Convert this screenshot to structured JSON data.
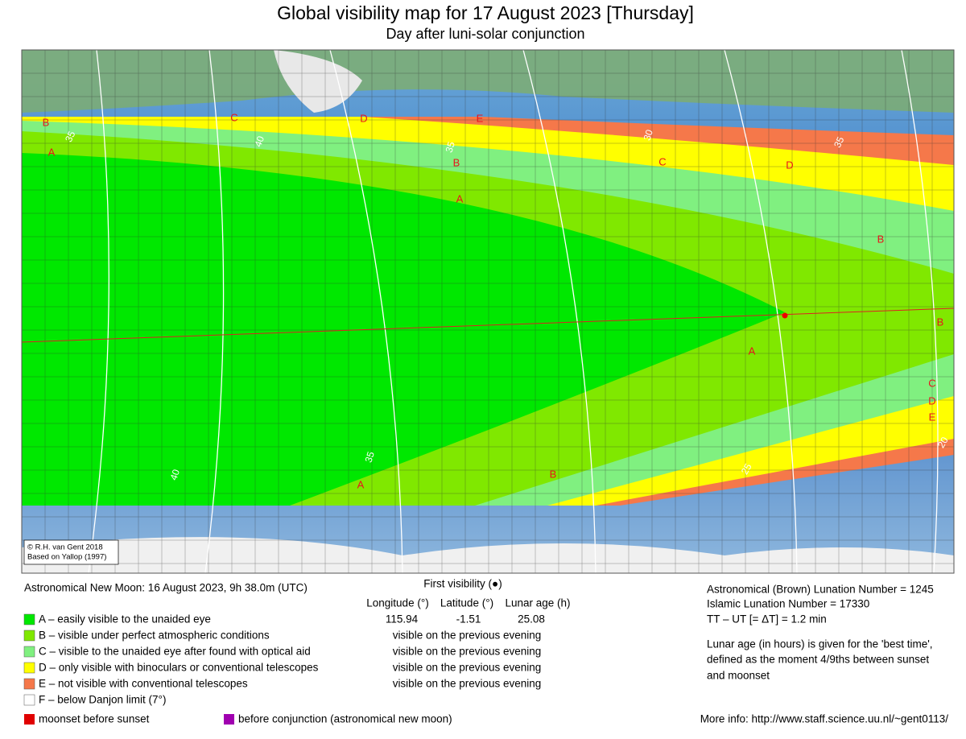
{
  "header": {
    "title": "Global visibility map for 17 August 2023 [Thursday]",
    "subtitle": "Day after luni-solar conjunction"
  },
  "map": {
    "zone_labels": [
      "B",
      "A",
      "C",
      "D",
      "E",
      "B",
      "A",
      "C",
      "D",
      "B",
      "B",
      "A",
      "C",
      "D",
      "E",
      "A",
      "B"
    ],
    "contour_labels": [
      "35",
      "40",
      "35",
      "30",
      "35",
      "40",
      "35",
      "25",
      "20"
    ],
    "credit": [
      "© R.H. van Gent 2018",
      "Based on Yallop (1997)"
    ]
  },
  "legend": {
    "new_moon": "Astronomical New Moon: 16 August 2023, 9h 38.0m (UTC)",
    "first_visibility": "First visibility (●)",
    "columns": [
      "Longitude (°)",
      "Latitude (°)",
      "Lunar age (h)"
    ],
    "values": [
      "115.94",
      "-1.51",
      "25.08"
    ],
    "zones": [
      "A – easily visible to the unaided eye",
      "B – visible under perfect atmospheric conditions",
      "C – visible to the unaided eye after found with optical aid",
      "D – only visible with binoculars or conventional telescopes",
      "E – not visible with conventional telescopes",
      "F – below Danjon limit (7°)"
    ],
    "statuses": [
      "visible on the previous evening",
      "visible on the previous evening",
      "visible on the previous evening",
      "visible on the previous evening"
    ],
    "info": [
      "Astronomical (Brown) Lunation Number = 1245",
      "Islamic Lunation Number = 17330",
      "TT – UT [= ΔT] = 1.2 min"
    ],
    "note": [
      "Lunar age (in hours) is given for the 'best time',",
      "defined as the moment 4/9ths between sunset",
      "and moonset"
    ]
  },
  "footer": {
    "moonset": "moonset before sunset",
    "conjunction": "before conjunction (astronomical new moon)",
    "more_info": "More info: http://www.staff.science.uu.nl/~gent0113/"
  }
}
